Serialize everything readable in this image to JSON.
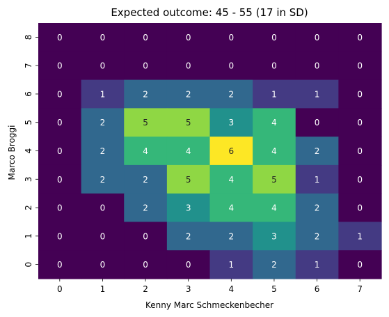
{
  "chart_data": {
    "type": "heatmap",
    "title": "Expected outcome: 45 - 55 (17 in SD)",
    "xlabel": "Kenny Marc Schmeckenbecher",
    "ylabel": "Marco Broggi",
    "x": [
      "0",
      "1",
      "2",
      "3",
      "4",
      "5",
      "6",
      "7"
    ],
    "y_top_to_bottom": [
      "8",
      "7",
      "6",
      "5",
      "4",
      "3",
      "2",
      "1",
      "0"
    ],
    "values": [
      [
        0,
        0,
        0,
        0,
        0,
        0,
        0,
        0
      ],
      [
        0,
        0,
        0,
        0,
        0,
        0,
        0,
        0
      ],
      [
        0,
        1,
        2,
        2,
        2,
        1,
        1,
        0
      ],
      [
        0,
        2,
        5,
        5,
        3,
        4,
        0,
        0
      ],
      [
        0,
        2,
        4,
        4,
        6,
        4,
        2,
        0
      ],
      [
        0,
        2,
        2,
        5,
        4,
        5,
        1,
        0
      ],
      [
        0,
        0,
        2,
        3,
        4,
        4,
        2,
        0
      ],
      [
        0,
        0,
        0,
        2,
        2,
        3,
        2,
        1
      ],
      [
        0,
        0,
        0,
        0,
        1,
        2,
        1,
        0
      ]
    ],
    "colormap": "viridis",
    "vmin": 0,
    "vmax": 6,
    "colors": [
      "#440154",
      "#443a83",
      "#31688e",
      "#21918c",
      "#35b779",
      "#8fd744",
      "#fde725"
    ]
  }
}
